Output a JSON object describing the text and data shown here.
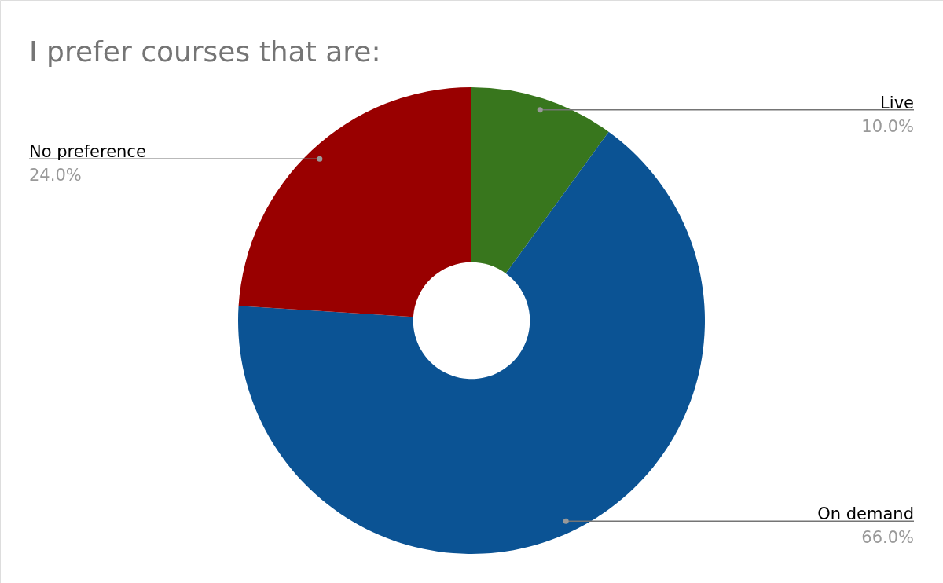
{
  "chart_data": {
    "type": "donut",
    "title": "I prefer courses that are:",
    "categories": [
      "Live",
      "On demand",
      "No preference"
    ],
    "values": [
      10,
      66,
      24
    ],
    "colors": [
      "#38761d",
      "#0b5394",
      "#990000"
    ],
    "value_labels": [
      "10.0%",
      "66.0%",
      "24.0%"
    ]
  }
}
